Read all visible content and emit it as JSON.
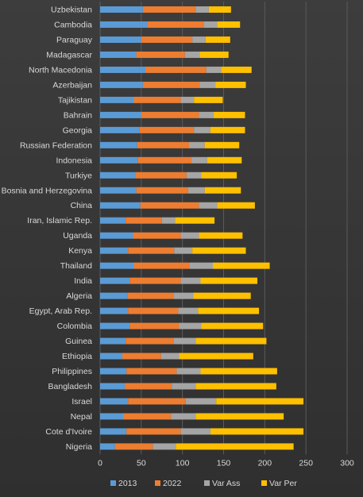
{
  "chart_data": {
    "type": "bar",
    "orientation": "horizontal",
    "stacked": true,
    "categories": [
      "Uzbekistan",
      "Cambodia",
      "Paraguay",
      "Madagascar",
      "North Macedonia",
      "Azerbaijan",
      "Tajikistan",
      "Bahrain",
      "Georgia",
      "Russian Federation",
      "Indonesia",
      "Turkiye",
      "Bosnia and Herzegovina",
      "China",
      "Iran, Islamic Rep.",
      "Uganda",
      "Kenya",
      "Thailand",
      "India",
      "Algeria",
      "Egypt, Arab Rep.",
      "Colombia",
      "Guinea",
      "Ethiopia",
      "Philippines",
      "Bangladesh",
      "Israel",
      "Nepal",
      "Cote d'Ivoire",
      "Nigeria"
    ],
    "series": [
      {
        "name": "2013",
        "color": "#5b9bd5",
        "values": [
          52,
          57,
          50,
          44,
          55,
          52,
          41,
          50,
          48,
          45,
          46,
          43,
          44,
          49,
          31,
          40,
          34,
          41,
          36,
          33,
          34,
          36,
          31,
          27,
          32,
          30,
          34,
          28,
          32,
          18
        ]
      },
      {
        "name": "2022",
        "color": "#ed7d31",
        "values": [
          64,
          69,
          62,
          59,
          74,
          69,
          57,
          70,
          66,
          63,
          65,
          62,
          63,
          71,
          44,
          58,
          56,
          68,
          62,
          56,
          61,
          60,
          58,
          47,
          61,
          57,
          70,
          58,
          66,
          46
        ]
      },
      {
        "name": "Var Ass",
        "color": "#a5a5a5",
        "values": [
          16,
          16,
          16,
          18,
          18,
          19,
          16,
          18,
          20,
          19,
          19,
          18,
          20,
          22,
          16,
          22,
          22,
          28,
          24,
          24,
          24,
          27,
          27,
          22,
          29,
          29,
          37,
          30,
          36,
          28
        ]
      },
      {
        "name": "Var Per",
        "color": "#ffc000",
        "values": [
          27,
          28,
          30,
          35,
          37,
          37,
          35,
          38,
          42,
          42,
          42,
          43,
          44,
          46,
          48,
          53,
          65,
          69,
          69,
          70,
          74,
          75,
          86,
          90,
          93,
          98,
          106,
          107,
          113,
          143
        ]
      }
    ],
    "xlim": [
      0,
      300
    ],
    "x_ticks": [
      "0",
      "50",
      "100",
      "150",
      "200",
      "250",
      "300"
    ],
    "grid": true,
    "legend": "bottom",
    "title": "",
    "xlabel": "",
    "ylabel": ""
  }
}
